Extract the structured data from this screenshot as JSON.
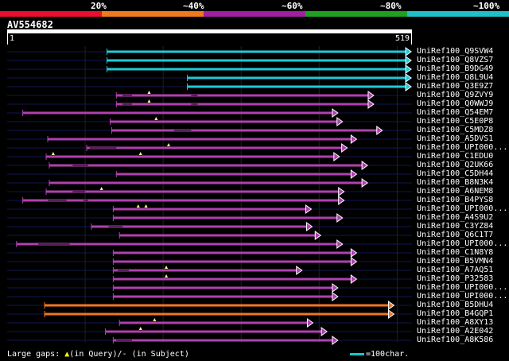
{
  "scale": {
    "labels": [
      "20%",
      "~40%",
      "~60%",
      "~80%",
      "~100%"
    ],
    "colors": [
      "#e8102d",
      "#f07820",
      "#a020a0",
      "#20a020",
      "#20c0c8"
    ]
  },
  "query": {
    "id": "AV554682",
    "start": "1",
    "end": "519"
  },
  "hits": [
    {
      "label": "UniRef100_Q9SVW4",
      "color": "cyan",
      "start": 128,
      "end": 518,
      "gaps": [],
      "thin": []
    },
    {
      "label": "UniRef100_Q8VZS7",
      "color": "cyan",
      "start": 128,
      "end": 518,
      "gaps": [],
      "thin": []
    },
    {
      "label": "UniRef100_B9DG49",
      "color": "cyan",
      "start": 128,
      "end": 518,
      "gaps": [],
      "thin": []
    },
    {
      "label": "UniRef100_Q8L9U4",
      "color": "cyan",
      "start": 231,
      "end": 518,
      "gaps": [],
      "thin": []
    },
    {
      "label": "UniRef100_Q3E9Z7",
      "color": "cyan",
      "start": 231,
      "end": 518,
      "gaps": [],
      "thin": []
    },
    {
      "label": "UniRef100_Q9ZVY9",
      "color": "purple",
      "start": 140,
      "end": 470,
      "gaps": [
        182
      ],
      "thin": [
        [
          148,
          160
        ],
        [
          236,
          244
        ]
      ]
    },
    {
      "label": "UniRef100_Q0WWJ9",
      "color": "purple",
      "start": 140,
      "end": 470,
      "gaps": [
        182
      ],
      "thin": [
        [
          148,
          160
        ],
        [
          236,
          244
        ]
      ]
    },
    {
      "label": "UniRef100_Q54EM7",
      "color": "purple",
      "start": 20,
      "end": 424,
      "gaps": [],
      "thin": []
    },
    {
      "label": "UniRef100_C5E0P8",
      "color": "purple",
      "start": 132,
      "end": 430,
      "gaps": [
        191
      ],
      "thin": []
    },
    {
      "label": "UniRef100_C5MDZ8",
      "color": "purple",
      "start": 134,
      "end": 481,
      "gaps": [],
      "thin": [
        [
          214,
          236
        ]
      ]
    },
    {
      "label": "UniRef100_A5DVS1",
      "color": "purple",
      "start": 52,
      "end": 448,
      "gaps": [],
      "thin": []
    },
    {
      "label": "UniRef100_UPI000...",
      "color": "purple",
      "start": 102,
      "end": 436,
      "gaps": [
        207
      ],
      "thin": [
        [
          106,
          140
        ]
      ]
    },
    {
      "label": "UniRef100_C1EDU0",
      "color": "purple",
      "start": 50,
      "end": 426,
      "gaps": [
        59,
        171
      ],
      "thin": []
    },
    {
      "label": "UniRef100_Q2UK66",
      "color": "purple",
      "start": 54,
      "end": 462,
      "gaps": [],
      "thin": [
        [
          84,
          104
        ]
      ]
    },
    {
      "label": "UniRef100_C5DH44",
      "color": "purple",
      "start": 140,
      "end": 448,
      "gaps": [],
      "thin": []
    },
    {
      "label": "UniRef100_B8N3K4",
      "color": "purple",
      "start": 54,
      "end": 462,
      "gaps": [],
      "thin": []
    },
    {
      "label": "UniRef100_A6NEM8",
      "color": "purple",
      "start": 50,
      "end": 432,
      "gaps": [
        121
      ],
      "thin": [
        [
          84,
          100
        ]
      ]
    },
    {
      "label": "UniRef100_B4PYS8",
      "color": "purple",
      "start": 20,
      "end": 432,
      "gaps": [],
      "thin": [
        [
          52,
          76
        ],
        [
          98,
          104
        ]
      ]
    },
    {
      "label": "UniRef100_UPI000...",
      "color": "purple",
      "start": 136,
      "end": 390,
      "gaps": [
        168,
        178
      ],
      "thin": []
    },
    {
      "label": "UniRef100_A4S9U2",
      "color": "purple",
      "start": 136,
      "end": 430,
      "gaps": [],
      "thin": []
    },
    {
      "label": "UniRef100_C3YZ84",
      "color": "purple",
      "start": 108,
      "end": 391,
      "gaps": [],
      "thin": [
        [
          130,
          148
        ]
      ]
    },
    {
      "label": "UniRef100_Q6C1T7",
      "color": "purple",
      "start": 144,
      "end": 402,
      "gaps": [],
      "thin": []
    },
    {
      "label": "UniRef100_UPI000...",
      "color": "purple",
      "start": 12,
      "end": 430,
      "gaps": [],
      "thin": [
        [
          40,
          80
        ]
      ]
    },
    {
      "label": "UniRef100_C1N8Y8",
      "color": "purple",
      "start": 136,
      "end": 448,
      "gaps": [],
      "thin": []
    },
    {
      "label": "UniRef100_B5VMN4",
      "color": "purple",
      "start": 136,
      "end": 448,
      "gaps": [],
      "thin": []
    },
    {
      "label": "UniRef100_A7AQ51",
      "color": "purple",
      "start": 136,
      "end": 378,
      "gaps": [
        204
      ],
      "thin": [
        [
          142,
          156
        ]
      ]
    },
    {
      "label": "UniRef100_P32583",
      "color": "purple",
      "start": 136,
      "end": 448,
      "gaps": [
        204
      ],
      "thin": []
    },
    {
      "label": "UniRef100_UPI000...",
      "color": "purple",
      "start": 136,
      "end": 424,
      "gaps": [],
      "thin": []
    },
    {
      "label": "UniRef100_UPI000...",
      "color": "purple",
      "start": 136,
      "end": 424,
      "gaps": [],
      "thin": []
    },
    {
      "label": "UniRef100_B5DHU4",
      "color": "orange",
      "start": 48,
      "end": 496,
      "gaps": [],
      "thin": []
    },
    {
      "label": "UniRef100_B4GQP1",
      "color": "orange",
      "start": 48,
      "end": 496,
      "gaps": [],
      "thin": []
    },
    {
      "label": "UniRef100_A8XY13",
      "color": "purple",
      "start": 144,
      "end": 392,
      "gaps": [
        189
      ],
      "thin": []
    },
    {
      "label": "UniRef100_A2E042",
      "color": "purple",
      "start": 126,
      "end": 410,
      "gaps": [
        171
      ],
      "thin": []
    },
    {
      "label": "UniRef100_A8K586",
      "color": "purple",
      "start": 136,
      "end": 424,
      "gaps": [],
      "thin": [
        [
          140,
          160
        ]
      ]
    }
  ],
  "legend": {
    "large_gaps": "Large gaps:",
    "in_query": "(in Query)/",
    "in_subject": "(in Subject)",
    "scale_text": "=100char."
  }
}
